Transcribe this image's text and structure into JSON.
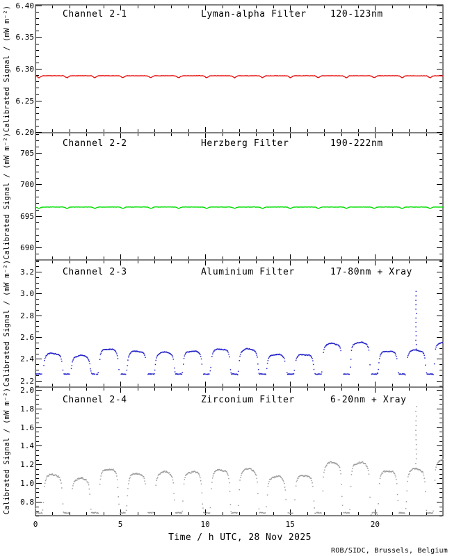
{
  "page": {
    "background": "#ffffff"
  },
  "footer": {
    "credit": "ROB/SIDC, Brussels, Belgium",
    "color": "#006600"
  },
  "chart_data": {
    "type": "multi-panel-time-series",
    "instrument_note": "Four stacked calibrated-signal time series for one day",
    "xaxis": {
      "label": "Time / h UTC, 28 Nov 2025",
      "min": 0,
      "max": 24,
      "major_ticks": [
        0,
        5,
        10,
        15,
        20
      ],
      "tick_labels": [
        "0",
        "5",
        "10",
        "15",
        "20"
      ],
      "minor_step": 1
    },
    "orbit": {
      "period_h": 1.645,
      "eclipse_phase_h": 0.21,
      "eclipse_half_flat_h": 0.18,
      "eclipse_half_full_h": 0.3
    },
    "panels": [
      {
        "type": "line",
        "channel": "Channel 2-1",
        "filter": "Lyman-alpha Filter",
        "band": "120-123nm",
        "color": "#E81010",
        "ylabel": "Calibrated Signal / (mW m⁻²)",
        "ylim": [
          6.199,
          6.401
        ],
        "yticks": [
          6.2,
          6.25,
          6.3,
          6.35,
          6.4
        ],
        "ytick_labels": [
          "6.20",
          "6.25",
          "6.30",
          "6.35",
          "6.40"
        ],
        "minor_step": 0.01,
        "baseline": 6.289,
        "dip_depth": 0.003,
        "noise": 0.0006
      },
      {
        "type": "line",
        "channel": "Channel 2-2",
        "filter": "Herzberg Filter",
        "band": "190-222nm",
        "color": "#00DD00",
        "ylabel": "Calibrated Signal / (mW m⁻²)",
        "ylim": [
          688.0,
          708.2
        ],
        "yticks": [
          690,
          695,
          700,
          705
        ],
        "ytick_labels": [
          "690",
          "695",
          "700",
          "705"
        ],
        "minor_step": 1,
        "baseline": 696.4,
        "dip_depth": 0.22,
        "noise": 0.05
      },
      {
        "type": "scatter",
        "channel": "Channel 2-3",
        "filter": "Aluminium Filter",
        "band": "17-80nm + Xray",
        "color": "#2424CC",
        "ylabel": "Calibrated Signal / (mW m⁻²)",
        "ylim": [
          2.14,
          3.31
        ],
        "yticks": [
          2.2,
          2.4,
          2.6,
          2.8,
          3.0,
          3.2
        ],
        "ytick_labels": [
          "2.2",
          "2.4",
          "2.6",
          "2.8",
          "3.0",
          "3.2"
        ],
        "minor_step": 0.05,
        "eclipse_bottom": 2.26,
        "edge_drop": 0.08,
        "dot_jitter": 0.007,
        "wiggle": 0.006,
        "orbit_peaks": [
          2.45,
          2.43,
          2.49,
          2.47,
          2.46,
          2.47,
          2.49,
          2.49,
          2.44,
          2.44,
          2.54,
          2.55,
          2.47,
          2.48,
          2.55
        ],
        "spike": {
          "time": 22.42,
          "top": 3.02
        }
      },
      {
        "type": "scatter",
        "channel": "Channel 2-4",
        "filter": "Zirconium Filter",
        "band": "6-20nm + Xray",
        "color": "#9C9C9C",
        "ylabel": "Calibrated Signal / (mW m⁻²)",
        "ylim": [
          0.65,
          2.03
        ],
        "yticks": [
          0.8,
          1.0,
          1.2,
          1.4,
          1.6,
          1.8,
          2.0
        ],
        "ytick_labels": [
          "0.8",
          "1.0",
          "1.2",
          "1.4",
          "1.6",
          "1.8",
          "2.0"
        ],
        "minor_step": 0.05,
        "eclipse_bottom": 0.68,
        "edge_drop": 0.15,
        "dot_jitter": 0.015,
        "wiggle": 0.01,
        "orbit_peaks": [
          1.09,
          1.05,
          1.15,
          1.1,
          1.12,
          1.12,
          1.14,
          1.15,
          1.07,
          1.08,
          1.22,
          1.22,
          1.13,
          1.15,
          1.25
        ],
        "spike": {
          "time": 22.42,
          "top": 1.82
        }
      }
    ]
  }
}
